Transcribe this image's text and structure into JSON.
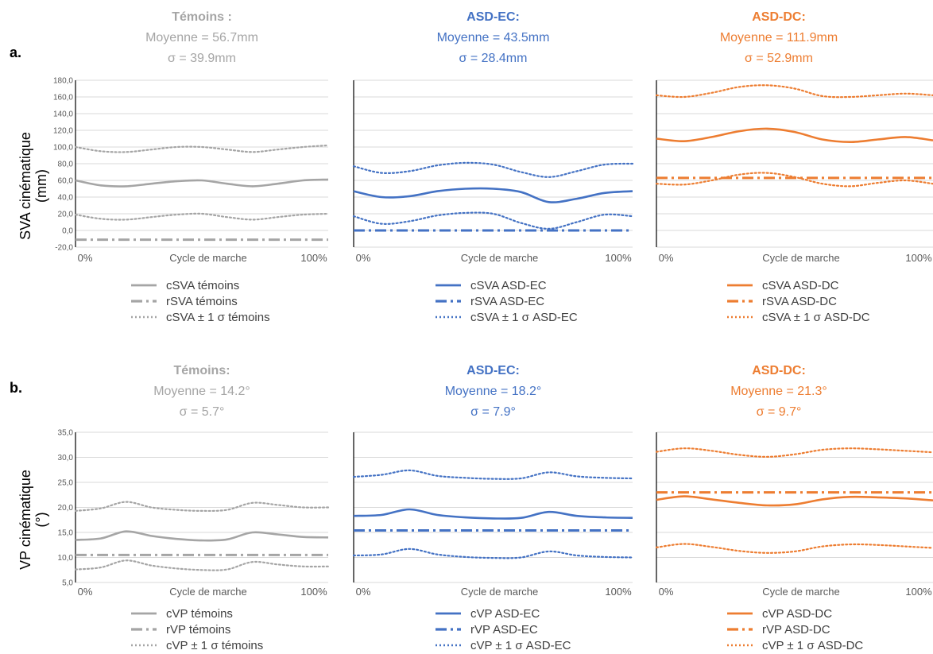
{
  "panel_labels": [
    "a.",
    "b."
  ],
  "row_ylabels": [
    [
      "SVA cinématique",
      "(mm)"
    ],
    [
      "VP cinématique",
      "(°)"
    ]
  ],
  "colors": {
    "temoins": "#a5a5a5",
    "asd_ec": "#4472c4",
    "asd_dc": "#ed7d31",
    "grid": "#d9d9d9",
    "axis": "#000000"
  },
  "chart_data": [
    {
      "type": "line",
      "group": "temoins",
      "title_lines": [
        "Témoins :",
        "Moyenne = 56.7mm",
        "σ = 39.9mm"
      ],
      "xlabel": "Cycle de marche",
      "x_start_label": "0%",
      "x_end_label": "100%",
      "ylim": [
        -20,
        180
      ],
      "yticks": [
        "-20,0",
        "0,0",
        "20,0",
        "40,0",
        "60,0",
        "80,0",
        "100,0",
        "120,0",
        "140,0",
        "160,0",
        "180,0"
      ],
      "show_ytick_labels": true,
      "grid": true,
      "x": [
        0,
        10,
        20,
        30,
        40,
        50,
        60,
        70,
        80,
        90,
        100
      ],
      "series": [
        {
          "name": "cSVA témoins",
          "style": "solid",
          "values": [
            60,
            54,
            53,
            56,
            59,
            60,
            56,
            53,
            56,
            60,
            61
          ]
        },
        {
          "name": "rSVA témoins",
          "style": "dashdot",
          "values": [
            -11,
            -11,
            -11,
            -11,
            -11,
            -11,
            -11,
            -11,
            -11,
            -11,
            -11
          ]
        },
        {
          "name": "cSVA ± 1 σ témoins",
          "style": "dotted",
          "values": [
            100,
            95,
            94,
            97,
            100,
            100,
            97,
            94,
            97,
            100,
            102
          ]
        },
        {
          "name": "",
          "style": "dotted",
          "values": [
            19,
            14,
            13,
            16,
            19,
            20,
            16,
            13,
            16,
            19,
            20
          ]
        }
      ]
    },
    {
      "type": "line",
      "group": "asd_ec",
      "title_lines": [
        "ASD-EC:",
        "Moyenne =  43.5mm",
        "σ = 28.4mm"
      ],
      "xlabel": "Cycle de marche",
      "x_start_label": "0%",
      "x_end_label": "100%",
      "ylim": [
        -20,
        180
      ],
      "show_ytick_labels": false,
      "grid": true,
      "x": [
        0,
        10,
        20,
        30,
        40,
        50,
        60,
        70,
        80,
        90,
        100
      ],
      "series": [
        {
          "name": "cSVA ASD-EC",
          "style": "solid",
          "values": [
            47,
            40,
            41,
            47,
            50,
            50,
            46,
            34,
            38,
            45,
            47
          ]
        },
        {
          "name": "rSVA ASD-EC",
          "style": "dashdot",
          "values": [
            0,
            0,
            0,
            0,
            0,
            0,
            0,
            0,
            0,
            0,
            0
          ]
        },
        {
          "name": "cSVA ± 1 σ ASD-EC",
          "style": "dotted",
          "values": [
            77,
            69,
            71,
            78,
            81,
            79,
            70,
            64,
            71,
            79,
            80
          ]
        },
        {
          "name": "",
          "style": "dotted",
          "values": [
            17,
            8,
            11,
            18,
            21,
            20,
            9,
            2,
            10,
            19,
            17
          ]
        }
      ]
    },
    {
      "type": "line",
      "group": "asd_dc",
      "title_lines": [
        "ASD-DC:",
        "Moyenne = 111.9mm",
        "σ = 52.9mm"
      ],
      "xlabel": "Cycle de marche",
      "x_start_label": "0%",
      "x_end_label": "100%",
      "ylim": [
        -20,
        180
      ],
      "show_ytick_labels": false,
      "grid": true,
      "x": [
        0,
        10,
        20,
        30,
        40,
        50,
        60,
        70,
        80,
        90,
        100
      ],
      "series": [
        {
          "name": "cSVA ASD-DC",
          "style": "solid",
          "values": [
            110,
            107,
            112,
            119,
            122,
            118,
            109,
            106,
            109,
            112,
            108
          ]
        },
        {
          "name": "rSVA ASD-DC",
          "style": "dashdot",
          "values": [
            63,
            63,
            63,
            63,
            63,
            63,
            63,
            63,
            63,
            63,
            63
          ]
        },
        {
          "name": "cSVA ± 1 σ ASD-DC",
          "style": "dotted",
          "values": [
            162,
            160,
            165,
            172,
            174,
            170,
            161,
            160,
            162,
            164,
            162
          ]
        },
        {
          "name": "",
          "style": "dotted",
          "values": [
            56,
            55,
            60,
            67,
            69,
            64,
            56,
            53,
            57,
            60,
            56
          ]
        }
      ]
    },
    {
      "type": "line",
      "group": "temoins",
      "title_lines": [
        "Témoins:",
        "Moyenne = 14.2°",
        "σ = 5.7°"
      ],
      "xlabel": "Cycle de marche",
      "x_start_label": "0%",
      "x_end_label": "100%",
      "ylim": [
        5,
        35
      ],
      "yticks": [
        "5,0",
        "10,0",
        "15,0",
        "20,0",
        "25,0",
        "30,0",
        "35,0"
      ],
      "show_ytick_labels": true,
      "grid": true,
      "x": [
        0,
        10,
        20,
        30,
        40,
        50,
        60,
        70,
        80,
        90,
        100
      ],
      "series": [
        {
          "name": "cVP témoins",
          "style": "solid",
          "values": [
            13.5,
            13.8,
            15.2,
            14.3,
            13.7,
            13.4,
            13.6,
            15.0,
            14.6,
            14.1,
            14.0
          ]
        },
        {
          "name": "rVP témoins",
          "style": "dashdot",
          "values": [
            10.5,
            10.5,
            10.5,
            10.5,
            10.5,
            10.5,
            10.5,
            10.5,
            10.5,
            10.5,
            10.5
          ]
        },
        {
          "name": "cVP ± 1 σ témoins",
          "style": "dotted",
          "values": [
            19.3,
            19.8,
            21.1,
            20.0,
            19.5,
            19.3,
            19.5,
            20.9,
            20.5,
            20.0,
            20.0
          ]
        },
        {
          "name": "",
          "style": "dotted",
          "values": [
            7.6,
            8.0,
            9.4,
            8.4,
            7.8,
            7.5,
            7.6,
            9.1,
            8.6,
            8.2,
            8.2
          ]
        }
      ]
    },
    {
      "type": "line",
      "group": "asd_ec",
      "title_lines": [
        "ASD-EC:",
        "Moyenne = 18.2°",
        "σ = 7.9°"
      ],
      "xlabel": "Cycle de marche",
      "x_start_label": "0%",
      "x_end_label": "100%",
      "ylim": [
        5,
        35
      ],
      "show_ytick_labels": false,
      "grid": true,
      "x": [
        0,
        10,
        20,
        30,
        40,
        50,
        60,
        70,
        80,
        90,
        100
      ],
      "series": [
        {
          "name": "cVP ASD-EC",
          "style": "solid",
          "values": [
            18.3,
            18.5,
            19.6,
            18.5,
            18.0,
            17.8,
            17.9,
            19.1,
            18.3,
            18.0,
            17.9
          ]
        },
        {
          "name": "rVP ASD-EC",
          "style": "dashdot",
          "values": [
            15.4,
            15.4,
            15.4,
            15.4,
            15.4,
            15.4,
            15.4,
            15.4,
            15.4,
            15.4,
            15.4
          ]
        },
        {
          "name": "cVP ± 1 σ ASD-EC",
          "style": "dotted",
          "values": [
            26.1,
            26.5,
            27.4,
            26.3,
            25.9,
            25.7,
            25.8,
            27.0,
            26.2,
            25.9,
            25.8
          ]
        },
        {
          "name": "",
          "style": "dotted",
          "values": [
            10.4,
            10.6,
            11.7,
            10.6,
            10.1,
            9.9,
            10.0,
            11.2,
            10.4,
            10.1,
            10.0
          ]
        }
      ]
    },
    {
      "type": "line",
      "group": "asd_dc",
      "title_lines": [
        "ASD-DC:",
        "Moyenne = 21.3°",
        "σ = 9.7°"
      ],
      "xlabel": "Cycle de marche",
      "x_start_label": "0%",
      "x_end_label": "100%",
      "ylim": [
        5,
        35
      ],
      "show_ytick_labels": false,
      "grid": true,
      "x": [
        0,
        10,
        20,
        30,
        40,
        50,
        60,
        70,
        80,
        90,
        100
      ],
      "series": [
        {
          "name": "cVP ASD-DC",
          "style": "solid",
          "values": [
            21.5,
            22.2,
            21.6,
            20.9,
            20.4,
            20.6,
            21.6,
            22.1,
            22.0,
            21.8,
            21.4
          ]
        },
        {
          "name": "rVP ASD-DC",
          "style": "dashdot",
          "values": [
            23.0,
            23.0,
            23.0,
            23.0,
            23.0,
            23.0,
            23.0,
            23.0,
            23.0,
            23.0,
            23.0
          ]
        },
        {
          "name": "cVP ± 1 σ ASD-DC",
          "style": "dotted",
          "values": [
            31.1,
            31.8,
            31.3,
            30.5,
            30.1,
            30.6,
            31.5,
            31.8,
            31.6,
            31.3,
            31.0
          ]
        },
        {
          "name": "",
          "style": "dotted",
          "values": [
            12.0,
            12.7,
            12.1,
            11.3,
            10.9,
            11.2,
            12.2,
            12.6,
            12.5,
            12.2,
            11.9
          ]
        }
      ]
    }
  ]
}
